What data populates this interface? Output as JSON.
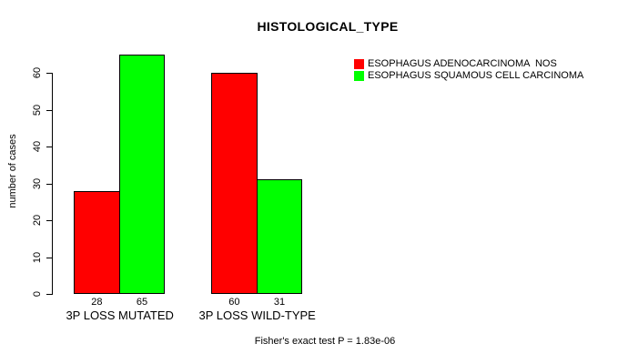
{
  "chart_data": {
    "type": "bar",
    "title": "HISTOLOGICAL_TYPE",
    "ylabel": "number of cases",
    "xlabel": "",
    "categories": [
      "3P LOSS MUTATED",
      "3P LOSS WILD-TYPE"
    ],
    "series": [
      {
        "name": "ESOPHAGUS ADENOCARCINOMA  NOS",
        "color": "#FF0000",
        "values": [
          28,
          60
        ]
      },
      {
        "name": "ESOPHAGUS SQUAMOUS CELL CARCINOMA",
        "color": "#00FF00",
        "values": [
          65,
          31
        ]
      }
    ],
    "yticks": [
      0,
      10,
      20,
      30,
      40,
      50,
      60
    ],
    "ylim": [
      0,
      65
    ],
    "grid": false,
    "legend_position": "top-right",
    "bar_border_color": "#000000",
    "annotation": "Fisher's exact test P = 1.83e-06"
  },
  "colors": {
    "background": "#FFFFFF",
    "text": "#000000",
    "axis": "#000000"
  }
}
